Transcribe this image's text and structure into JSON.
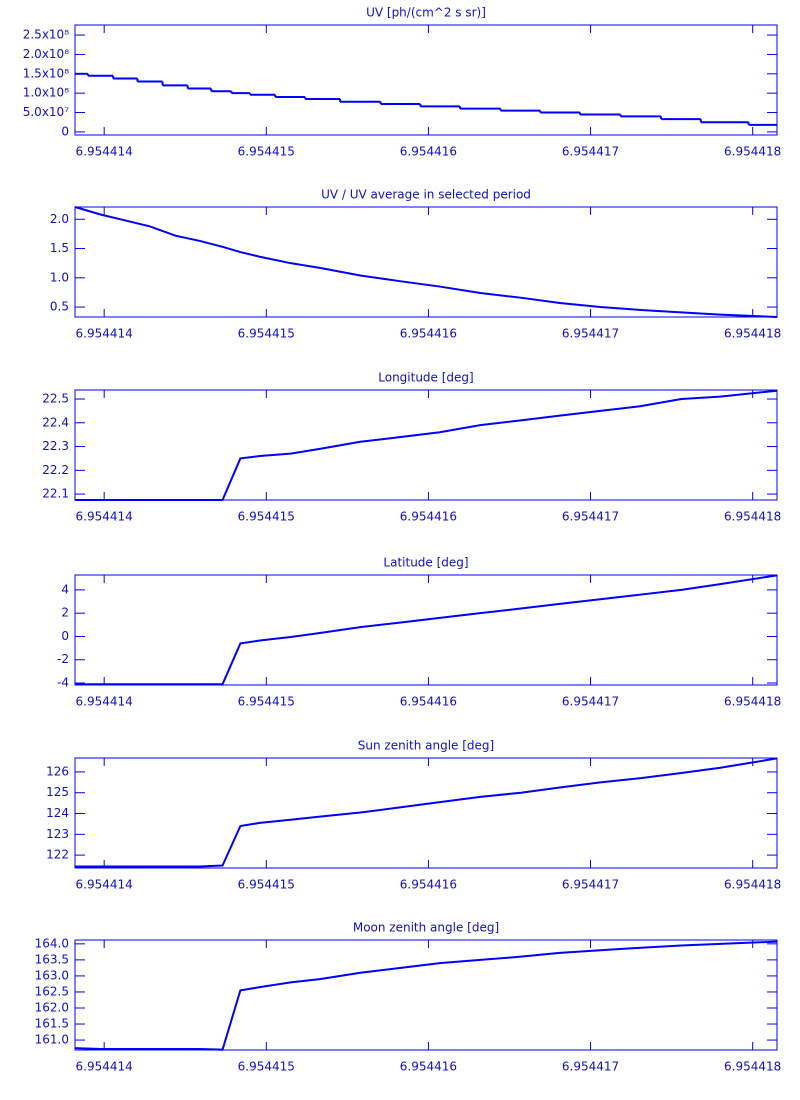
{
  "chart_data": [
    {
      "type": "line",
      "steps": true,
      "title": "UV [ph/(cm^2 s sr)]",
      "color": "#0000ff",
      "x": [
        6.95441382,
        6.95441398,
        6.95441413,
        6.95441428,
        6.95441444,
        6.95441459,
        6.95441473,
        6.95441484,
        6.95441496,
        6.95441515,
        6.95441533,
        6.95441558,
        6.95441583,
        6.95441607,
        6.95441632,
        6.95441657,
        6.95441681,
        6.95441706,
        6.95441731,
        6.95441756,
        6.9544178,
        6.95441815
      ],
      "values": [
        150000000,
        145000000,
        138000000,
        130000000,
        120000000,
        112000000,
        105000000,
        100000000,
        96000000,
        90000000,
        85000000,
        78000000,
        72000000,
        66000000,
        60000000,
        55000000,
        50000000,
        45000000,
        40000000,
        33000000,
        25000000,
        18000000
      ],
      "xlim": [
        6.95441382,
        6.95441815
      ],
      "xticks": [
        6.954414,
        6.954415,
        6.954416,
        6.954417,
        6.954418
      ],
      "ylim": [
        -8000000,
        276000000
      ],
      "yticks": [
        0,
        {
          "value": 50000000,
          "label": "5.0x10⁷"
        },
        {
          "value": 100000000,
          "label": "1.0x10⁸"
        },
        {
          "value": 150000000,
          "label": "1.5x10⁸"
        },
        {
          "value": 200000000,
          "label": "2.0x10⁸"
        },
        {
          "value": 250000000,
          "label": "2.5x10⁸"
        }
      ]
    },
    {
      "type": "line",
      "title": "UV / UV average in selected period",
      "color": "#0000ff",
      "x": [
        6.95441382,
        6.95441398,
        6.95441413,
        6.95441428,
        6.95441444,
        6.95441459,
        6.95441473,
        6.95441484,
        6.95441496,
        6.95441515,
        6.95441533,
        6.95441558,
        6.95441583,
        6.95441607,
        6.95441632,
        6.95441657,
        6.95441681,
        6.95441706,
        6.95441731,
        6.95441756,
        6.9544178,
        6.95441815
      ],
      "values": [
        2.21,
        2.08,
        1.98,
        1.88,
        1.72,
        1.63,
        1.53,
        1.44,
        1.36,
        1.25,
        1.17,
        1.04,
        0.94,
        0.85,
        0.74,
        0.66,
        0.57,
        0.5,
        0.45,
        0.41,
        0.37,
        0.33
      ],
      "xlim": [
        6.95441382,
        6.95441815
      ],
      "xticks": [
        6.954414,
        6.954415,
        6.954416,
        6.954417,
        6.954418
      ],
      "ylim": [
        0.33,
        2.21
      ],
      "yticks": [
        0.5,
        {
          "value": 1,
          "label": "1.0"
        },
        1.5,
        {
          "value": 2,
          "label": "2.0"
        }
      ]
    },
    {
      "type": "line",
      "title": "Longitude [deg]",
      "color": "#0000ff",
      "x": [
        6.95441382,
        6.95441398,
        6.95441413,
        6.95441428,
        6.95441444,
        6.95441459,
        6.95441473,
        6.95441484,
        6.95441496,
        6.95441515,
        6.95441533,
        6.95441558,
        6.95441583,
        6.95441607,
        6.95441632,
        6.95441657,
        6.95441681,
        6.95441706,
        6.95441731,
        6.95441756,
        6.9544178,
        6.95441815
      ],
      "values": [
        22.075,
        22.075,
        22.075,
        22.075,
        22.075,
        22.075,
        22.075,
        22.25,
        22.26,
        22.27,
        22.29,
        22.32,
        22.34,
        22.36,
        22.39,
        22.41,
        22.43,
        22.45,
        22.47,
        22.5,
        22.51,
        22.535
      ],
      "xlim": [
        6.95441382,
        6.95441815
      ],
      "xticks": [
        6.954414,
        6.954415,
        6.954416,
        6.954417,
        6.954418
      ],
      "ylim": [
        22.075,
        22.538
      ],
      "yticks": [
        22.1,
        22.2,
        22.3,
        22.4,
        22.5
      ]
    },
    {
      "type": "line",
      "title": "Latitude [deg]",
      "color": "#0000ff",
      "x": [
        6.95441382,
        6.95441398,
        6.95441413,
        6.95441428,
        6.95441444,
        6.95441459,
        6.95441473,
        6.95441484,
        6.95441496,
        6.95441515,
        6.95441533,
        6.95441558,
        6.95441583,
        6.95441607,
        6.95441632,
        6.95441657,
        6.95441681,
        6.95441706,
        6.95441731,
        6.95441756,
        6.9544178,
        6.95441815
      ],
      "values": [
        -4.1,
        -4.1,
        -4.1,
        -4.1,
        -4.1,
        -4.1,
        -4.1,
        -0.6,
        -0.35,
        -0.05,
        0.3,
        0.8,
        1.2,
        1.6,
        2.0,
        2.4,
        2.8,
        3.2,
        3.6,
        4.0,
        4.5,
        5.25
      ],
      "xlim": [
        6.95441382,
        6.95441815
      ],
      "xticks": [
        6.954414,
        6.954415,
        6.954416,
        6.954417,
        6.954418
      ],
      "ylim": [
        -4.17,
        5.28
      ],
      "yticks": [
        -4,
        -2,
        0,
        2,
        4
      ]
    },
    {
      "type": "line",
      "title": "Sun zenith angle [deg]",
      "color": "#0000ff",
      "x": [
        6.95441382,
        6.95441398,
        6.95441413,
        6.95441428,
        6.95441444,
        6.95441459,
        6.95441473,
        6.95441484,
        6.95441496,
        6.95441515,
        6.95441533,
        6.95441558,
        6.95441583,
        6.95441607,
        6.95441632,
        6.95441657,
        6.95441681,
        6.95441706,
        6.95441731,
        6.95441756,
        6.9544178,
        6.95441815
      ],
      "values": [
        121.45,
        121.45,
        121.45,
        121.45,
        121.45,
        121.45,
        121.5,
        123.4,
        123.55,
        123.7,
        123.85,
        124.05,
        124.3,
        124.55,
        124.8,
        125.0,
        125.25,
        125.5,
        125.7,
        125.95,
        126.2,
        126.65
      ],
      "xlim": [
        6.95441382,
        6.95441815
      ],
      "xticks": [
        6.954414,
        6.954415,
        6.954416,
        6.954417,
        6.954418
      ],
      "ylim": [
        121.38,
        126.67
      ],
      "yticks": [
        122,
        123,
        124,
        125,
        126
      ]
    },
    {
      "type": "line",
      "title": "Moon zenith angle [deg]",
      "color": "#0000ff",
      "x": [
        6.95441382,
        6.95441398,
        6.95441413,
        6.95441428,
        6.95441444,
        6.95441459,
        6.95441473,
        6.95441484,
        6.95441496,
        6.95441515,
        6.95441533,
        6.95441558,
        6.95441583,
        6.95441607,
        6.95441632,
        6.95441657,
        6.95441681,
        6.95441706,
        6.95441731,
        6.95441756,
        6.9544178,
        6.95441815
      ],
      "values": [
        160.75,
        160.72,
        160.72,
        160.72,
        160.72,
        160.72,
        160.7,
        162.55,
        162.65,
        162.8,
        162.9,
        163.1,
        163.25,
        163.4,
        163.5,
        163.6,
        163.72,
        163.8,
        163.88,
        163.95,
        164.0,
        164.07
      ],
      "xlim": [
        6.95441382,
        6.95441815
      ],
      "xticks": [
        6.954414,
        6.954415,
        6.954416,
        6.954417,
        6.954418
      ],
      "ylim": [
        160.69,
        164.12
      ],
      "yticks": [
        {
          "value": 161,
          "label": "161.0"
        },
        161.5,
        {
          "value": 162,
          "label": "162.0"
        },
        162.5,
        {
          "value": 163,
          "label": "163.0"
        },
        163.5,
        {
          "value": 164,
          "label": "164.0"
        }
      ]
    }
  ]
}
